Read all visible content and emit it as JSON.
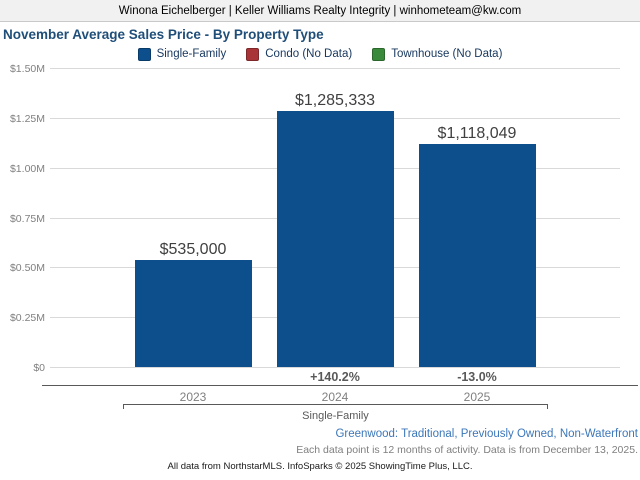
{
  "header": {
    "contact_line": "Winona Eichelberger | Keller Williams Realty Integrity | winhometeam@kw.com"
  },
  "title": "November Average Sales Price - By Property Type",
  "legend": [
    {
      "label": "Single-Family",
      "color": "#0d4f8c"
    },
    {
      "label": "Condo (No Data)",
      "color": "#a93438"
    },
    {
      "label": "Townhouse (No Data)",
      "color": "#3a8a3c"
    }
  ],
  "chart_data": {
    "type": "bar",
    "title": "November Average Sales Price - By Property Type",
    "categories": [
      "2023",
      "2024",
      "2025"
    ],
    "series": [
      {
        "name": "Single-Family",
        "values": [
          535000,
          1285333,
          1118049
        ]
      }
    ],
    "value_labels": [
      "$535,000",
      "$1,285,333",
      "$1,118,049"
    ],
    "pct_change_labels": [
      "",
      "+140.2%",
      "-13.0%"
    ],
    "y_ticks": [
      "$0",
      "$0.25M",
      "$0.50M",
      "$0.75M",
      "$1.00M",
      "$1.25M",
      "$1.50M"
    ],
    "ylim": [
      0,
      1500000
    ],
    "xlabel": "",
    "ylabel": "",
    "grid": true,
    "legend_position": "top",
    "bar_color": "#0d4f8c",
    "group_label": "Single-Family",
    "no_data_series": [
      "Condo",
      "Townhouse"
    ]
  },
  "footer": {
    "filters_line": "Greenwood: Traditional, Previously Owned, Non-Waterfront",
    "data_note": "Each data point is 12 months of activity. Data is from December 13, 2025.",
    "attribution": "All data from NorthstarMLS. InfoSparks © 2025 ShowingTime Plus, LLC."
  }
}
